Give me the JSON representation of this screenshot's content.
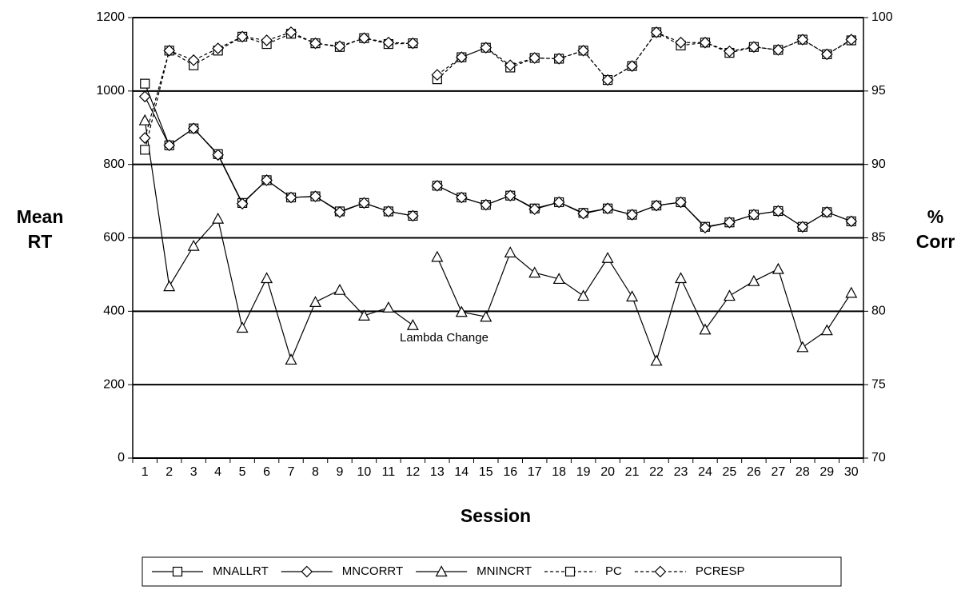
{
  "chart_data": {
    "type": "line",
    "x_label": "Session",
    "y_label": [
      "Mean",
      "RT"
    ],
    "y2_label": [
      "%",
      "Corr"
    ],
    "annotation": "Lambda Change",
    "line_break_after": "12",
    "grid": true,
    "legend": "bottom",
    "categories": [
      "1",
      "2",
      "3",
      "4",
      "5",
      "6",
      "7",
      "8",
      "9",
      "10",
      "11",
      "12",
      "13",
      "14",
      "15",
      "16",
      "17",
      "18",
      "19",
      "20",
      "21",
      "22",
      "23",
      "24",
      "25",
      "26",
      "27",
      "28",
      "29",
      "30"
    ],
    "ylim": [
      0,
      1200
    ],
    "yticks": [
      0,
      200,
      400,
      600,
      800,
      1000,
      1200
    ],
    "y2lim": [
      70,
      100
    ],
    "y2ticks": [
      70,
      75,
      80,
      85,
      90,
      95,
      100
    ],
    "series": [
      {
        "name": "MNALLRT",
        "color": "#000000",
        "marker": "square",
        "dash": "solid",
        "values": [
          1020,
          852,
          898,
          828,
          695,
          757,
          710,
          713,
          672,
          695,
          672,
          660,
          742,
          710,
          690,
          715,
          680,
          697,
          668,
          680,
          663,
          688,
          697,
          630,
          642,
          663,
          673,
          630,
          670,
          645
        ]
      },
      {
        "name": "MNCORRT",
        "color": "#000000",
        "marker": "diamond",
        "dash": "solid",
        "values": [
          985,
          852,
          898,
          826,
          693,
          757,
          710,
          713,
          670,
          695,
          672,
          660,
          742,
          710,
          690,
          715,
          678,
          697,
          666,
          680,
          663,
          688,
          697,
          628,
          642,
          663,
          673,
          630,
          670,
          645
        ]
      },
      {
        "name": "MNINCRT",
        "color": "#000000",
        "marker": "triangle",
        "dash": "solid",
        "values": [
          920,
          468,
          578,
          652,
          355,
          490,
          268,
          425,
          458,
          388,
          410,
          362,
          548,
          398,
          385,
          560,
          505,
          488,
          442,
          545,
          440,
          265,
          490,
          350,
          442,
          482,
          515,
          302,
          348,
          450
        ]
      },
      {
        "name": "PC",
        "color": "#000000",
        "marker": "square",
        "dash": "dashed",
        "axis": "y2",
        "values": [
          91.0,
          97.75,
          96.75,
          97.75,
          98.7,
          98.2,
          98.9,
          98.25,
          98.0,
          98.6,
          98.2,
          98.25,
          95.8,
          97.3,
          97.95,
          96.6,
          97.25,
          97.2,
          97.75,
          95.75,
          96.7,
          99.0,
          98.1,
          98.3,
          97.6,
          98.0,
          97.8,
          98.5,
          97.5,
          98.45
        ]
      },
      {
        "name": "PCRESP",
        "color": "#000000",
        "marker": "diamond",
        "dash": "dashed",
        "axis": "y2",
        "values": [
          91.8,
          97.75,
          97.1,
          97.9,
          98.7,
          98.45,
          99.0,
          98.25,
          98.05,
          98.6,
          98.3,
          98.25,
          96.1,
          97.3,
          97.95,
          96.75,
          97.25,
          97.2,
          97.75,
          95.75,
          96.7,
          99.0,
          98.3,
          98.3,
          97.7,
          98.0,
          97.8,
          98.5,
          97.5,
          98.5
        ]
      }
    ]
  }
}
